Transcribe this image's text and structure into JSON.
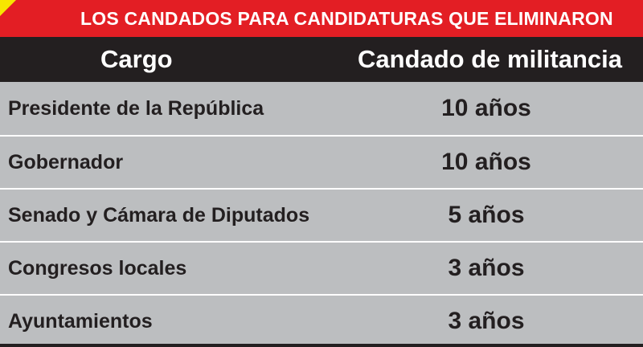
{
  "title": "LOS CANDADOS PARA CANDIDATURAS QUE ELIMINARON",
  "colors": {
    "title_bg": "#e31e24",
    "corner": "#f7e600",
    "header_bg": "#231f20",
    "row_bg": "#bcbec0"
  },
  "columns": {
    "cargo": "Cargo",
    "candado": "Candado de militancia"
  },
  "rows": [
    {
      "cargo": "Presidente de la República",
      "candado": "10 años"
    },
    {
      "cargo": "Gobernador",
      "candado": "10 años"
    },
    {
      "cargo": "Senado y Cámara de Diputados",
      "candado": "5 años"
    },
    {
      "cargo": "Congresos locales",
      "candado": "3 años"
    },
    {
      "cargo": "Ayuntamientos",
      "candado": "3 años"
    }
  ]
}
